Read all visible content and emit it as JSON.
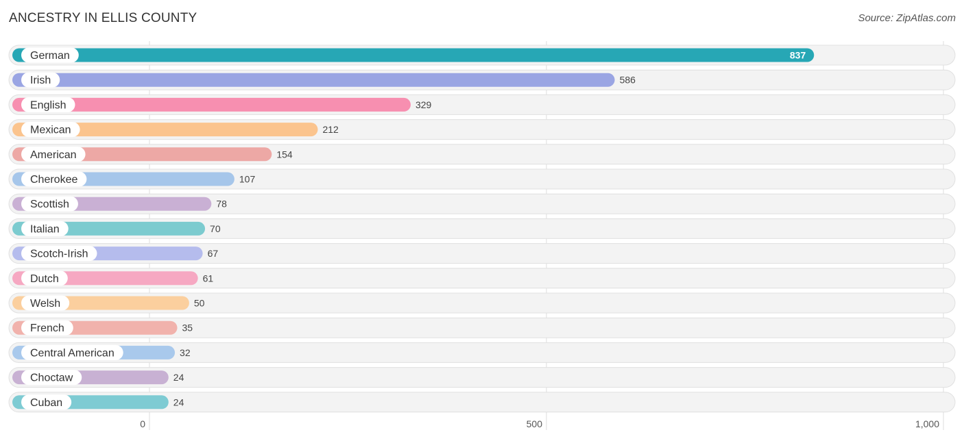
{
  "header": {
    "title": "ANCESTRY IN ELLIS COUNTY",
    "source": "Source: ZipAtlas.com"
  },
  "chart_data": {
    "type": "bar",
    "orientation": "horizontal",
    "title": "ANCESTRY IN ELLIS COUNTY",
    "categories": [
      "German",
      "Irish",
      "English",
      "Mexican",
      "American",
      "Cherokee",
      "Scottish",
      "Italian",
      "Scotch-Irish",
      "Dutch",
      "Welsh",
      "French",
      "Central American",
      "Choctaw",
      "Cuban"
    ],
    "values": [
      837,
      586,
      329,
      212,
      154,
      107,
      78,
      70,
      67,
      61,
      50,
      35,
      32,
      24,
      24
    ],
    "colors": [
      "#27a7b5",
      "#9aa5e3",
      "#f78fb0",
      "#fbc48e",
      "#eda8a5",
      "#a6c6ea",
      "#c9b0d4",
      "#7ccbcf",
      "#b5bced",
      "#f6a8c2",
      "#fbcf9e",
      "#f1b2ac",
      "#a9c9ec",
      "#c8b1d3",
      "#7ecbd3"
    ],
    "xlim": [
      0,
      1000
    ],
    "xticks": [
      0,
      500,
      1000
    ],
    "xtick_labels": [
      "0",
      "500",
      "1,000"
    ],
    "grid": true,
    "legend": "none"
  }
}
